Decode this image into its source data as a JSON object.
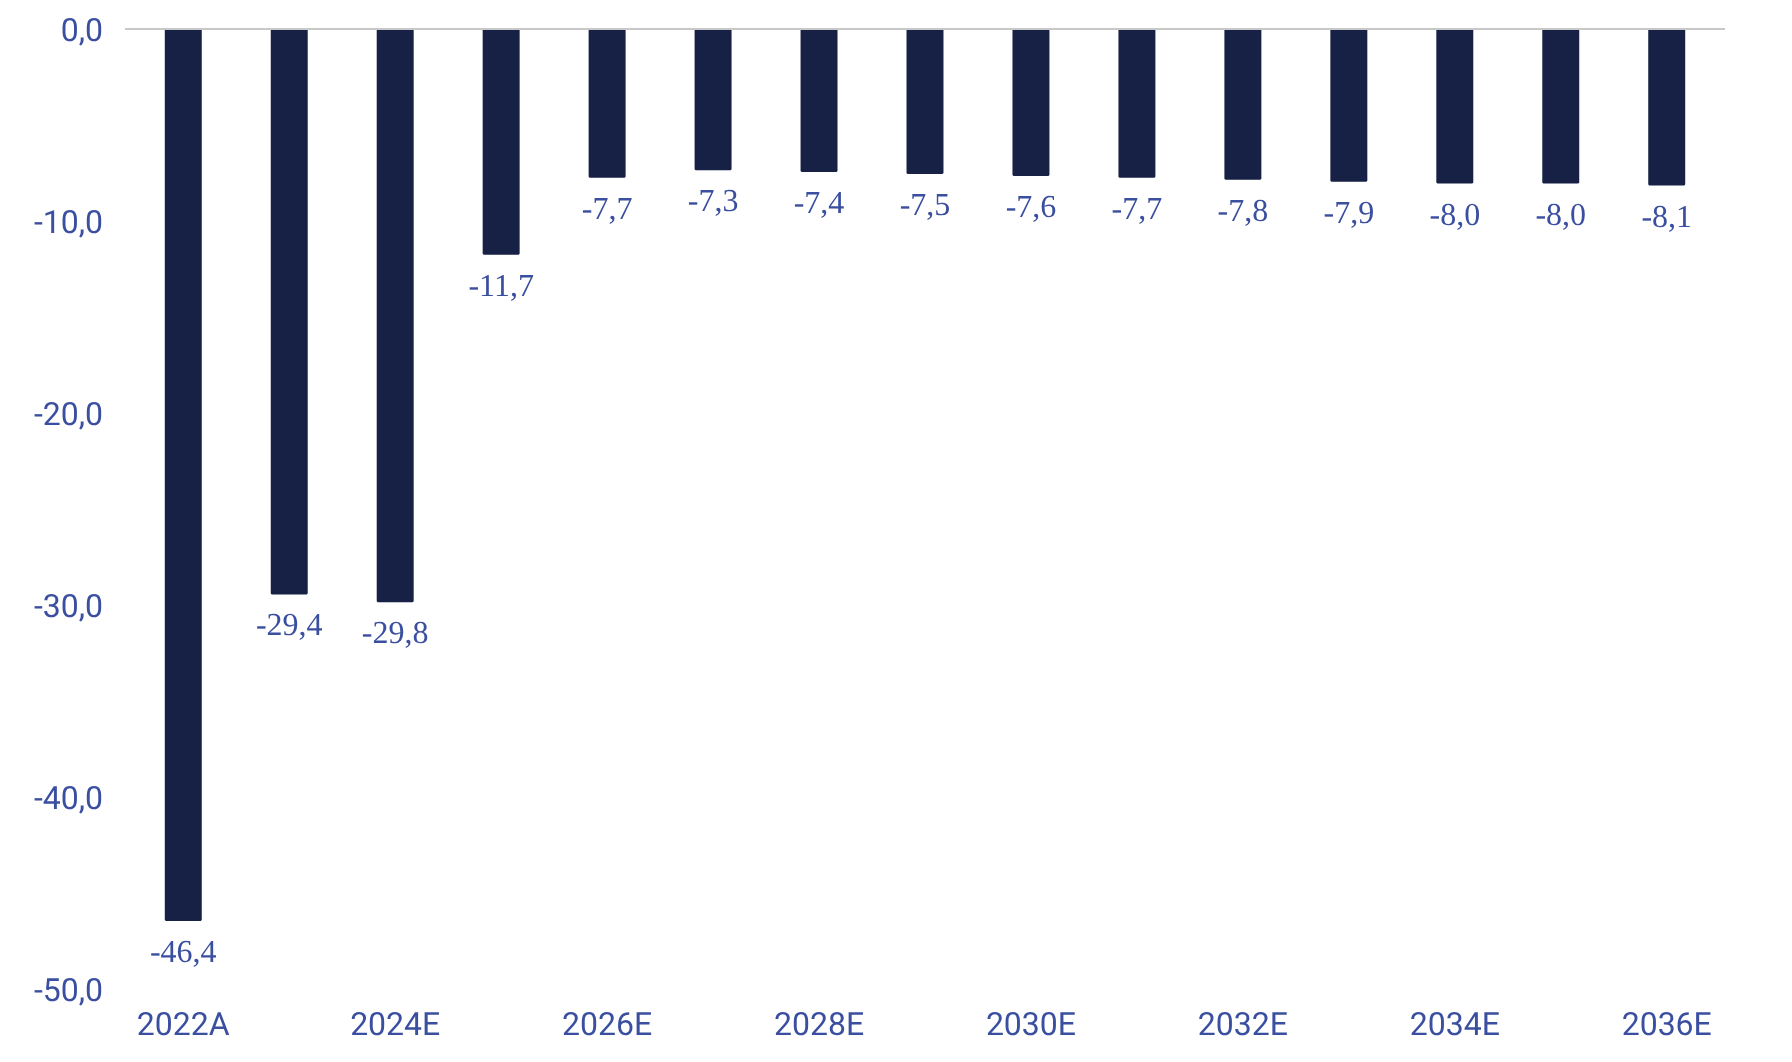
{
  "chart_data": {
    "type": "bar",
    "categories": [
      "2022A",
      null,
      "2024E",
      null,
      "2026E",
      null,
      "2028E",
      null,
      "2030E",
      null,
      "2032E",
      null,
      "2034E",
      null,
      "2036E"
    ],
    "values": [
      -46.4,
      -29.4,
      -29.8,
      -11.7,
      -7.7,
      -7.3,
      -7.4,
      -7.5,
      -7.6,
      -7.7,
      -7.8,
      -7.9,
      -8.0,
      -8.0,
      -8.1
    ],
    "value_labels": [
      "-46,4",
      "-29,4",
      "-29,8",
      "-11,7",
      "-7,7",
      "-7,3",
      "-7,4",
      "-7,5",
      "-7,6",
      "-7,7",
      "-7,8",
      "-7,9",
      "-8,0",
      "-8,0",
      "-8,1"
    ],
    "color": "#172145",
    "ylim": [
      -50,
      0
    ],
    "yticks": [
      {
        "value": 0,
        "label": "0,0"
      },
      {
        "value": -10,
        "label": "-10,0"
      },
      {
        "value": -20,
        "label": "-20,0"
      },
      {
        "value": -30,
        "label": "-30,0"
      },
      {
        "value": -40,
        "label": "-40,0"
      },
      {
        "value": -50,
        "label": "-50,0"
      }
    ],
    "grid": false
  }
}
